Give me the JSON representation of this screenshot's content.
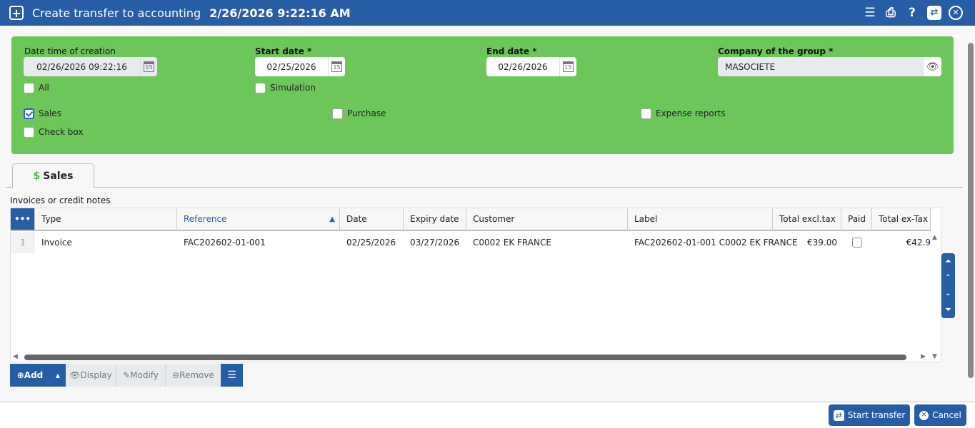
{
  "header": {
    "title": "Create transfer to accounting",
    "datetime": "2/26/2026 9:22:16 AM",
    "icons": [
      "add-square-icon",
      "menu-icon",
      "print-icon",
      "help-icon",
      "transfer-icon",
      "close-circle-icon"
    ]
  },
  "form": {
    "creation": {
      "label": "Date time of creation",
      "value": "02/26/2026 09:22:16"
    },
    "start": {
      "label": "Start date *",
      "value": "02/25/2026"
    },
    "end": {
      "label": "End date *",
      "value": "02/26/2026"
    },
    "company": {
      "label": "Company of the group *",
      "value": "MASOCIETE"
    },
    "checks": {
      "all": {
        "label": "All",
        "checked": false
      },
      "simulation": {
        "label": "Simulation",
        "checked": false
      },
      "sales": {
        "label": "Sales",
        "checked": true
      },
      "purchase": {
        "label": "Purchase",
        "checked": false
      },
      "expense": {
        "label": "Expense reports",
        "checked": false
      },
      "checkbox": {
        "label": "Check box",
        "checked": false
      }
    }
  },
  "tab": {
    "label": "Sales"
  },
  "table": {
    "caption": "Invoices or credit notes",
    "menu": "•••",
    "columns": [
      "Type",
      "Reference",
      "Date",
      "Expiry date",
      "Customer",
      "Label",
      "Total excl.tax",
      "Paid",
      "Total ex-Tax"
    ],
    "rows": [
      {
        "num": "1",
        "type": "Invoice",
        "reference": "FAC202602-01-001",
        "date": "02/25/2026",
        "expiry": "03/27/2026",
        "customer": "C0002 EK FRANCE",
        "label": "FAC202602-01-001 C0002 EK FRANCE",
        "total_excl": "€39.00",
        "paid": false,
        "total_ex_tax": "€42.9"
      }
    ]
  },
  "buttons": {
    "add": "Add",
    "display": "Display",
    "modify": "Modify",
    "remove": "Remove"
  },
  "footer": {
    "start": "Start transfer",
    "cancel": "Cancel"
  },
  "colors": {
    "primary": "#275da5",
    "panel": "#6cc65a"
  }
}
